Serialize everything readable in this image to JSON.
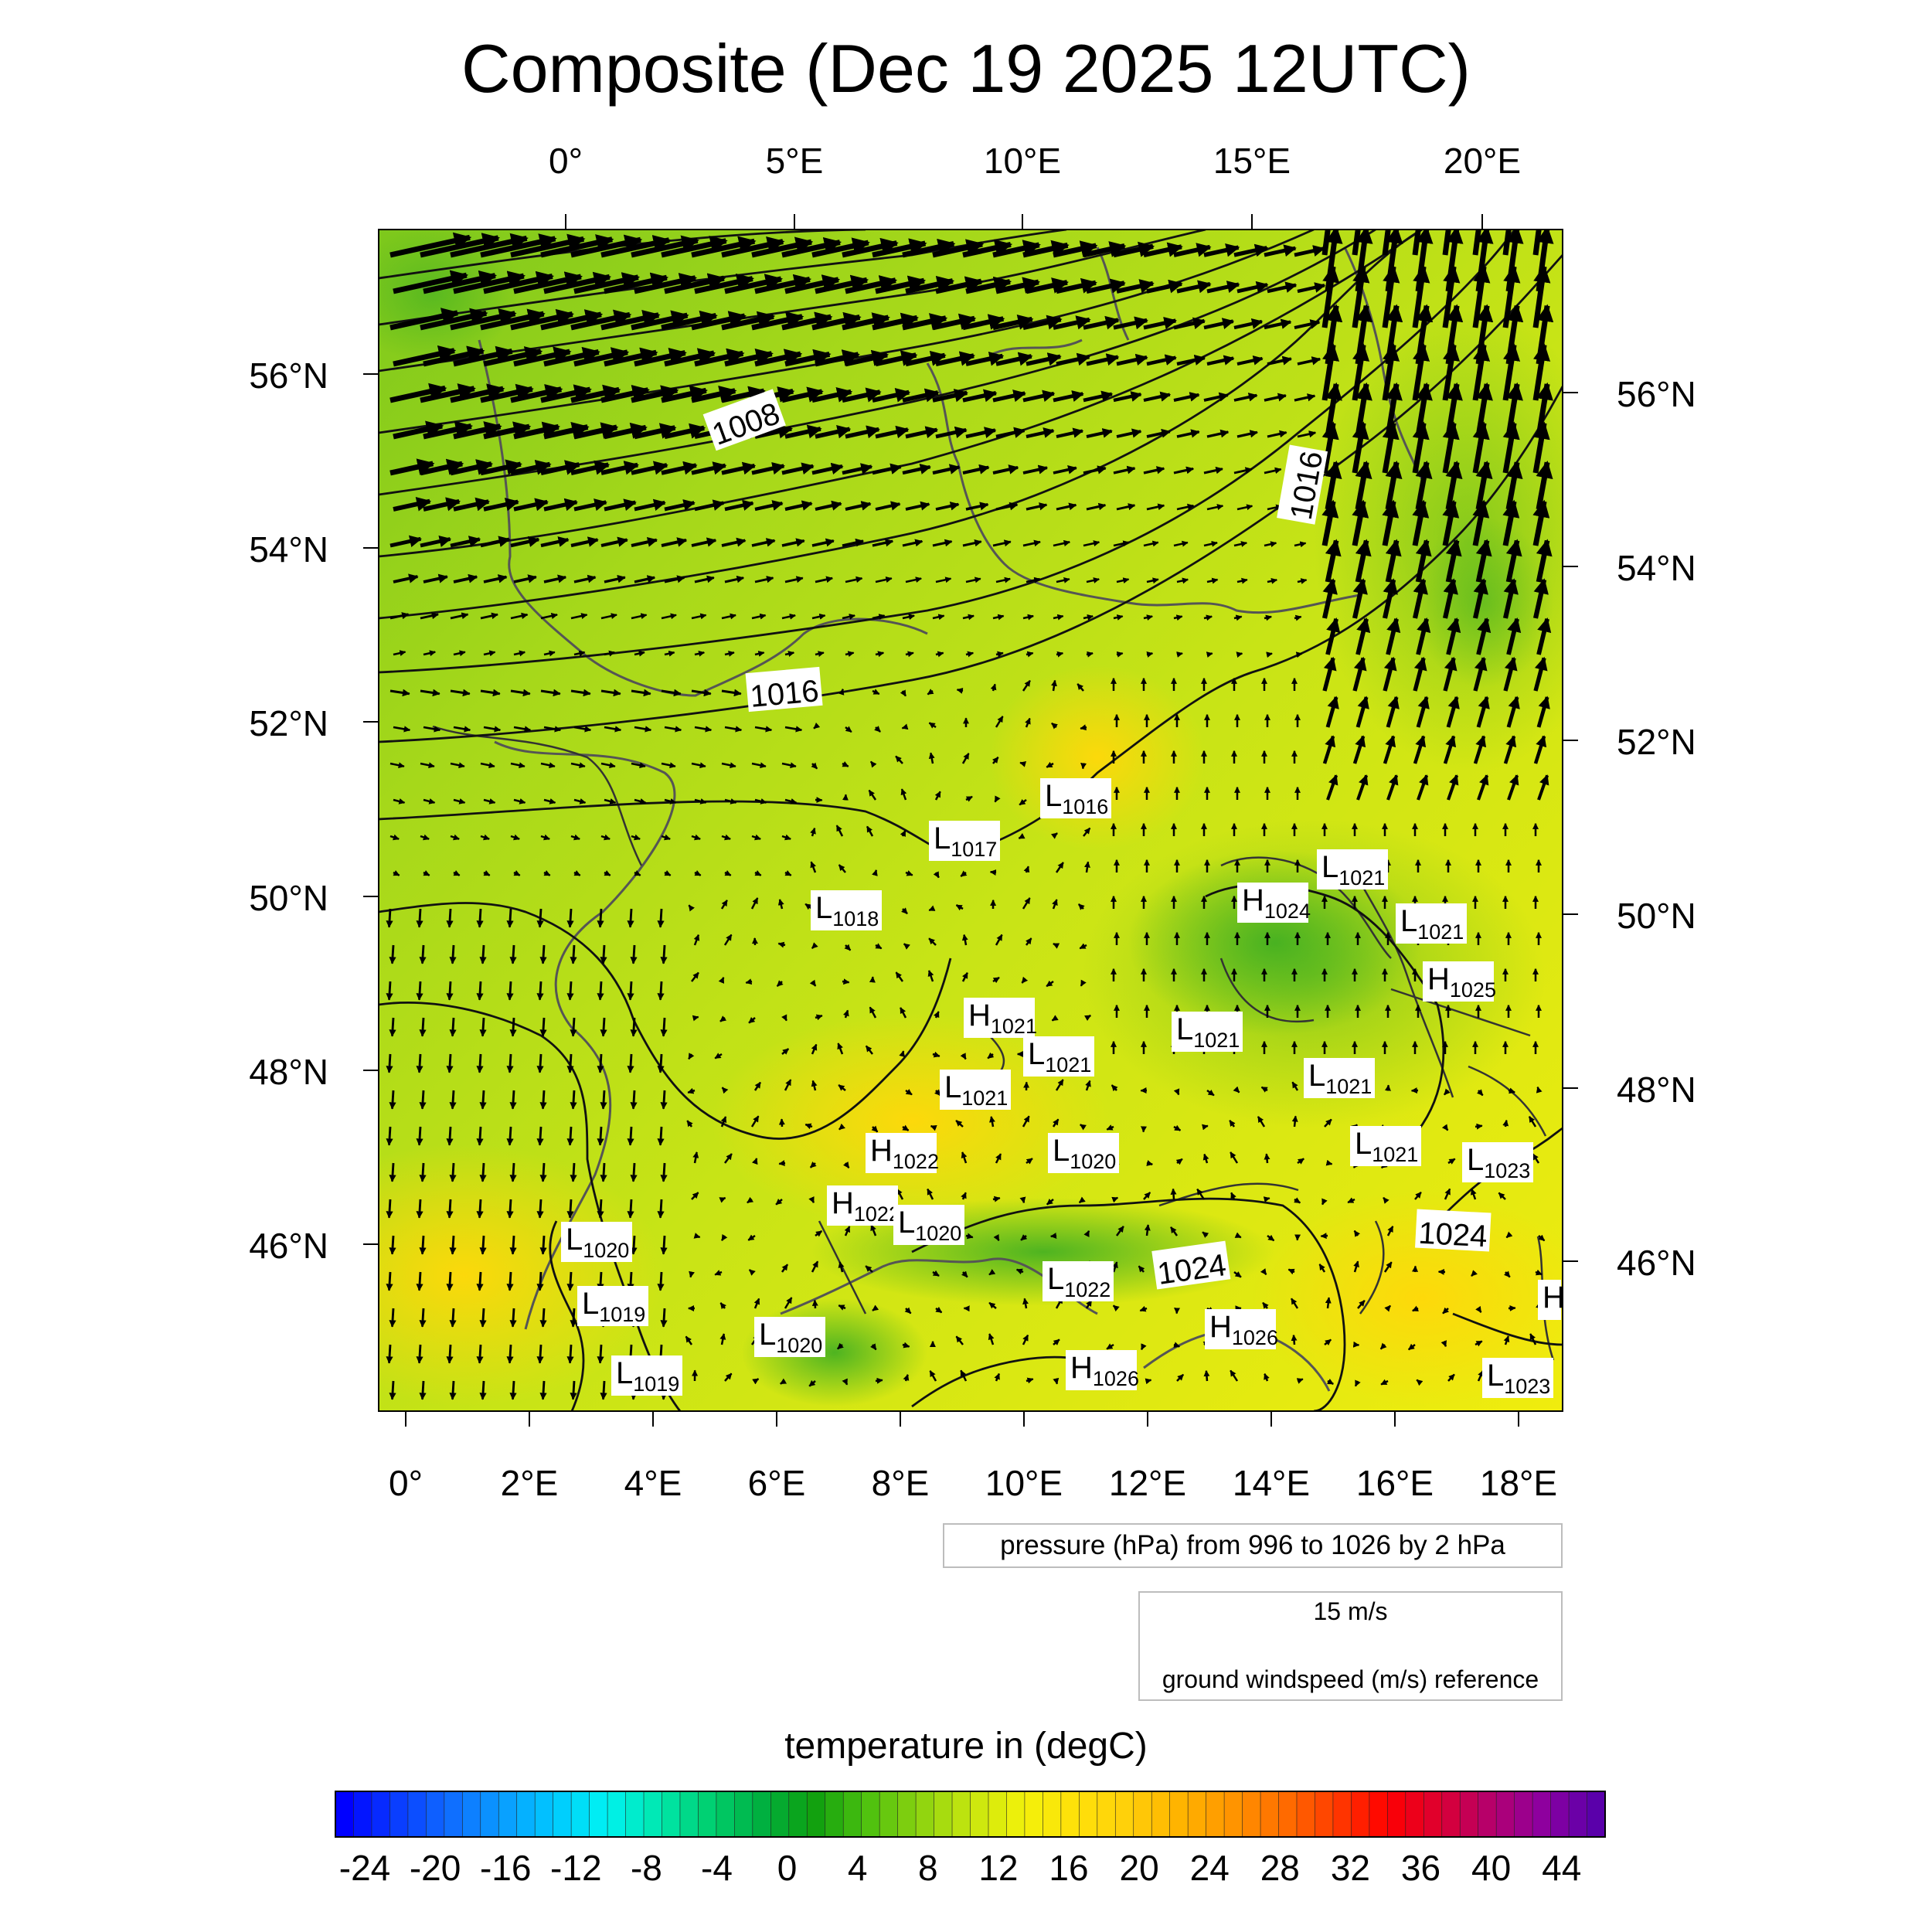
{
  "title": "Composite (Dec 19 2025 12UTC)",
  "map": {
    "top_lon_labels": [
      "0°",
      "5°E",
      "10°E",
      "15°E",
      "20°E"
    ],
    "bottom_lon_labels": [
      "0°",
      "2°E",
      "4°E",
      "6°E",
      "8°E",
      "10°E",
      "12°E",
      "14°E",
      "16°E",
      "18°E"
    ],
    "left_lat_labels": [
      "56°N",
      "54°N",
      "52°N",
      "50°N",
      "48°N",
      "46°N"
    ],
    "right_lat_labels": [
      "56°N",
      "54°N",
      "52°N",
      "50°N",
      "48°N",
      "46°N"
    ],
    "isobar_labels": [
      "1008",
      "1016",
      "1016",
      "1024",
      "1024"
    ],
    "pressure_centers": [
      {
        "t": "L",
        "v": "1016"
      },
      {
        "t": "L",
        "v": "1017"
      },
      {
        "t": "L",
        "v": "1018"
      },
      {
        "t": "L",
        "v": "1021"
      },
      {
        "t": "H",
        "v": "1024"
      },
      {
        "t": "L",
        "v": "1021"
      },
      {
        "t": "H",
        "v": "1025"
      },
      {
        "t": "H",
        "v": "1021"
      },
      {
        "t": "L",
        "v": "1021"
      },
      {
        "t": "L",
        "v": "1021"
      },
      {
        "t": "L",
        "v": "1021"
      },
      {
        "t": "L",
        "v": "1021"
      },
      {
        "t": "L",
        "v": "1021"
      },
      {
        "t": "H",
        "v": "1022"
      },
      {
        "t": "L",
        "v": "1020"
      },
      {
        "t": "L",
        "v": "1023"
      },
      {
        "t": "H",
        "v": "1022"
      },
      {
        "t": "L",
        "v": "1020"
      },
      {
        "t": "L",
        "v": "1020"
      },
      {
        "t": "L",
        "v": "1019"
      },
      {
        "t": "L",
        "v": "1022"
      },
      {
        "t": "L",
        "v": "1020"
      },
      {
        "t": "H",
        "v": "1026"
      },
      {
        "t": "H",
        "v": "1026"
      },
      {
        "t": "L",
        "v": "1019"
      },
      {
        "t": "L",
        "v": "1023"
      },
      {
        "t": "H",
        "v": ""
      }
    ]
  },
  "pressure_note": "pressure (hPa) from 996 to 1026 by 2 hPa",
  "wind_reference": {
    "speed_label": "15 m/s",
    "caption": "ground windspeed (m/s) reference"
  },
  "colorbar": {
    "title": "temperature in (degC)",
    "ticks": [
      "-24",
      "-20",
      "-16",
      "-12",
      "-8",
      "-4",
      "0",
      "4",
      "8",
      "12",
      "16",
      "20",
      "24",
      "28",
      "32",
      "36",
      "40",
      "44"
    ],
    "colors": [
      "#0000ff",
      "#0a3cff",
      "#0f6bff",
      "#0a9bff",
      "#00c8ff",
      "#00f2f2",
      "#00e8b0",
      "#00d070",
      "#00b040",
      "#0fa00f",
      "#4cc00f",
      "#8ad20f",
      "#c6e60f",
      "#f2f20a",
      "#ffe10a",
      "#ffd00a",
      "#ffb400",
      "#ff9600",
      "#ff6e00",
      "#ff3c00",
      "#ff0000",
      "#dc0032",
      "#b4006e",
      "#8c00a0",
      "#5a00aa"
    ]
  }
}
